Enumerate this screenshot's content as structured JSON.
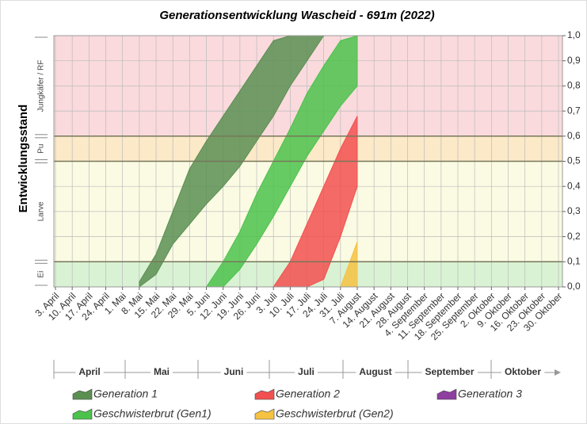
{
  "chart_data": {
    "type": "band",
    "title": "Generationsentwicklung Wascheid - 691m (2022)",
    "y_label": "Entwicklungsstand",
    "categories": [
      "3. April",
      "10. April",
      "17. April",
      "24. April",
      "1. Mai",
      "8. Mai",
      "15. Mai",
      "22. Mai",
      "29. Mai",
      "5. Juni",
      "12. Juni",
      "19. Juni",
      "26. Juni",
      "3. Juli",
      "10. Juli",
      "17. Juli",
      "24. Juli",
      "31. Juli",
      "7. August",
      "14. August",
      "21. August",
      "28. August",
      "4. September",
      "11. September",
      "18. September",
      "25. September",
      "2. Oktober",
      "9. Oktober",
      "16. Oktober",
      "23. Oktober",
      "30. Oktober"
    ],
    "months": [
      "April",
      "Mai",
      "Juni",
      "Juli",
      "August",
      "September",
      "Oktober"
    ],
    "ylim": [
      0,
      1
    ],
    "yticks": [
      {
        "value": 0,
        "label": "0,0"
      },
      {
        "value": 0.1,
        "label": "0,1"
      },
      {
        "value": 0.2,
        "label": "0,2"
      },
      {
        "value": 0.3,
        "label": "0,3"
      },
      {
        "value": 0.4,
        "label": "0,4"
      },
      {
        "value": 0.5,
        "label": "0,5"
      },
      {
        "value": 0.6,
        "label": "0,6"
      },
      {
        "value": 0.7,
        "label": "0,7"
      },
      {
        "value": 0.8,
        "label": "0,8"
      },
      {
        "value": 0.9,
        "label": "0,9"
      },
      {
        "value": 1,
        "label": "1,0"
      }
    ],
    "grid": true,
    "zones": [
      {
        "label": "Ei",
        "from": 0,
        "to": 0.1,
        "color": "#d9f2d4"
      },
      {
        "label": "Larve",
        "from": 0.1,
        "to": 0.5,
        "color": "#fbfbe4"
      },
      {
        "label": "Pu",
        "from": 0.5,
        "to": 0.6,
        "color": "#fbe9c8"
      },
      {
        "label": "Jungkäfer / RF",
        "from": 0.6,
        "to": 1,
        "color": "#fadadd"
      }
    ],
    "series": [
      {
        "name": "Generation 1",
        "color": "#5b8f52",
        "values": [
          null,
          null,
          null,
          null,
          null,
          0.02,
          0.13,
          0.3,
          0.47,
          0.58,
          0.68,
          0.78,
          0.88,
          0.98,
          1.0,
          1.0,
          1.0,
          null,
          null,
          null,
          null,
          null,
          null,
          null,
          null,
          null,
          null,
          null,
          null,
          null,
          null
        ],
        "lower": [
          null,
          null,
          null,
          null,
          null,
          0,
          0.05,
          0.17,
          0.25,
          0.33,
          0.4,
          0.48,
          0.58,
          0.68,
          0.8,
          0.9,
          1.0,
          null,
          null,
          null,
          null,
          null,
          null,
          null,
          null,
          null,
          null,
          null,
          null,
          null,
          null
        ]
      },
      {
        "name": "Geschwisterbrut (Gen1)",
        "color": "#4cc24c",
        "values": [
          null,
          null,
          null,
          null,
          null,
          null,
          null,
          null,
          null,
          0,
          0.1,
          0.22,
          0.37,
          0.5,
          0.63,
          0.77,
          0.88,
          0.98,
          1.0,
          null,
          null,
          null,
          null,
          null,
          null,
          null,
          null,
          null,
          null,
          null,
          null
        ],
        "lower": [
          null,
          null,
          null,
          null,
          null,
          null,
          null,
          null,
          null,
          0,
          0,
          0.07,
          0.17,
          0.28,
          0.4,
          0.52,
          0.62,
          0.72,
          0.8,
          null,
          null,
          null,
          null,
          null,
          null,
          null,
          null,
          null,
          null,
          null,
          null
        ]
      },
      {
        "name": "Generation 2",
        "color": "#f25050",
        "values": [
          null,
          null,
          null,
          null,
          null,
          null,
          null,
          null,
          null,
          null,
          null,
          null,
          null,
          0,
          0.1,
          0.25,
          0.4,
          0.55,
          0.68,
          null,
          null,
          null,
          null,
          null,
          null,
          null,
          null,
          null,
          null,
          null,
          null
        ],
        "lower": [
          null,
          null,
          null,
          null,
          null,
          null,
          null,
          null,
          null,
          null,
          null,
          null,
          null,
          0,
          0,
          0,
          0.03,
          0.2,
          0.4,
          null,
          null,
          null,
          null,
          null,
          null,
          null,
          null,
          null,
          null,
          null,
          null
        ]
      },
      {
        "name": "Geschwisterbrut (Gen2)",
        "color": "#f5c242",
        "values": [
          null,
          null,
          null,
          null,
          null,
          null,
          null,
          null,
          null,
          null,
          null,
          null,
          null,
          null,
          null,
          null,
          null,
          0,
          0.18,
          null,
          null,
          null,
          null,
          null,
          null,
          null,
          null,
          null,
          null,
          null,
          null
        ],
        "lower": [
          null,
          null,
          null,
          null,
          null,
          null,
          null,
          null,
          null,
          null,
          null,
          null,
          null,
          null,
          null,
          null,
          null,
          0,
          0,
          null,
          null,
          null,
          null,
          null,
          null,
          null,
          null,
          null,
          null,
          null,
          null
        ]
      },
      {
        "name": "Generation 3",
        "color": "#8e3fa0",
        "values": [
          null,
          null,
          null,
          null,
          null,
          null,
          null,
          null,
          null,
          null,
          null,
          null,
          null,
          null,
          null,
          null,
          null,
          null,
          null,
          null,
          null,
          null,
          null,
          null,
          null,
          null,
          null,
          null,
          null,
          null,
          null
        ],
        "lower": [
          null,
          null,
          null,
          null,
          null,
          null,
          null,
          null,
          null,
          null,
          null,
          null,
          null,
          null,
          null,
          null,
          null,
          null,
          null,
          null,
          null,
          null,
          null,
          null,
          null,
          null,
          null,
          null,
          null,
          null,
          null
        ]
      }
    ]
  }
}
